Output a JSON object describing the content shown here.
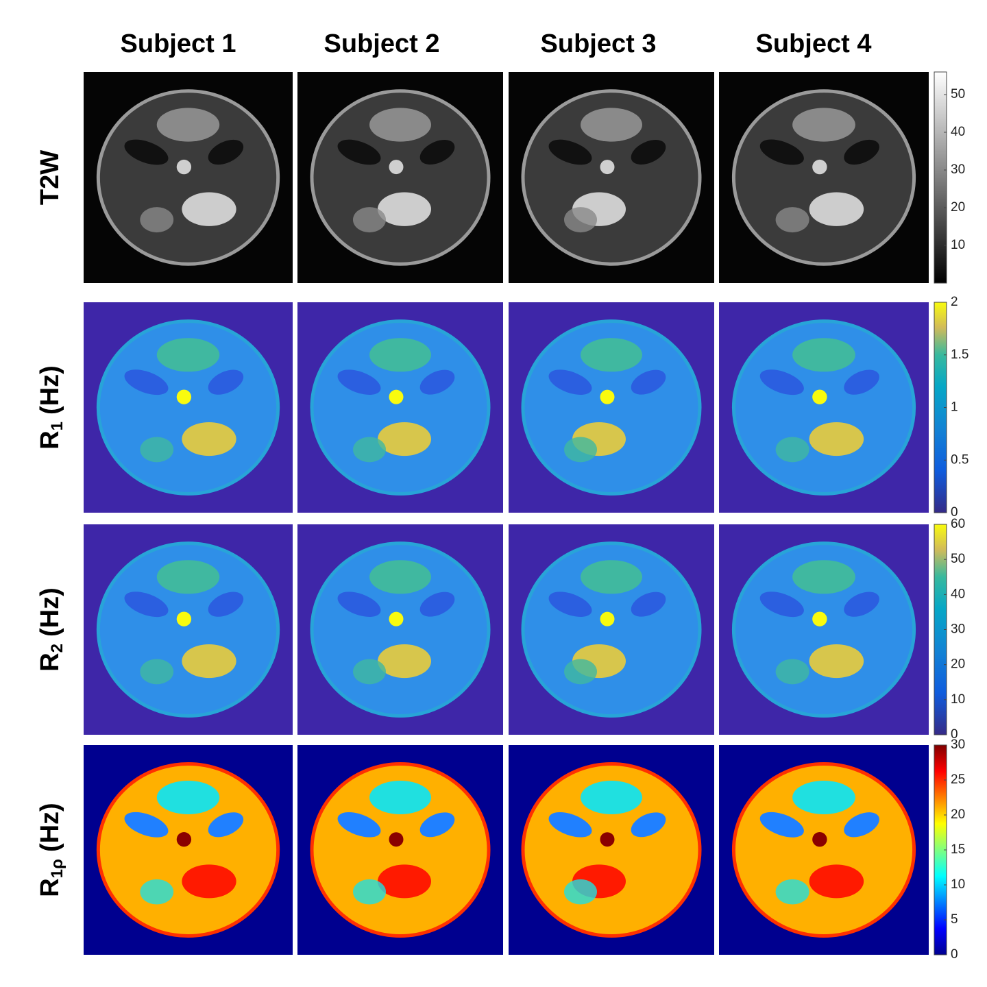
{
  "columns": [
    "Subject 1",
    "Subject 2",
    "Subject 3",
    "Subject 4"
  ],
  "rows": [
    {
      "label": {
        "main": "T2W"
      },
      "colormap": "gray",
      "colorbar": {
        "lim": [
          0,
          56
        ],
        "ticks": [
          10,
          20,
          30,
          40,
          50
        ]
      }
    },
    {
      "label": {
        "main": "R",
        "sub": "1",
        "unit": "(Hz)"
      },
      "colormap": "parula",
      "colorbar": {
        "lim": [
          0,
          2
        ],
        "ticks": [
          0,
          0.5,
          1,
          1.5,
          2
        ]
      }
    },
    {
      "label": {
        "main": "R",
        "sub": "2",
        "unit": "(Hz)"
      },
      "colormap": "parula",
      "colorbar": {
        "lim": [
          0,
          60
        ],
        "ticks": [
          0,
          10,
          20,
          30,
          40,
          50,
          60
        ]
      }
    },
    {
      "label": {
        "main": "R",
        "sub": "1ρ",
        "unit": "(Hz)"
      },
      "colormap": "jet",
      "colorbar": {
        "lim": [
          0,
          30
        ],
        "ticks": [
          0,
          5,
          10,
          15,
          20,
          25,
          30
        ]
      }
    }
  ]
}
